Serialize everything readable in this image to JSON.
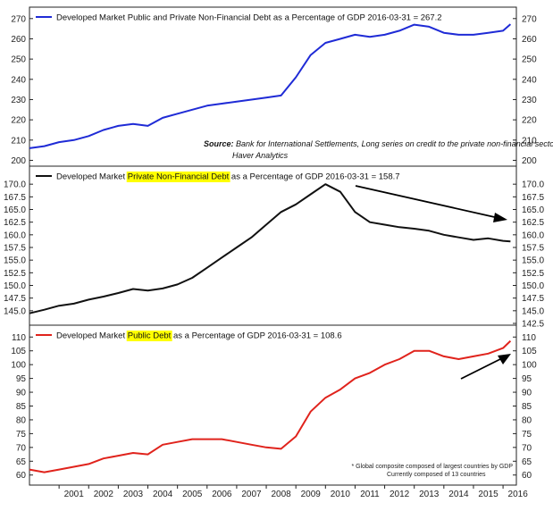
{
  "colors": {
    "blue": "#1f2bd6",
    "black": "#111111",
    "red": "#e0231c",
    "highlight": "#ffff00"
  },
  "x_tick_labels": [
    "2001",
    "2002",
    "2003",
    "2004",
    "2005",
    "2006",
    "2007",
    "2008",
    "2009",
    "2010",
    "2011",
    "2012",
    "2013",
    "2014",
    "2015",
    "2016"
  ],
  "chart_data": [
    {
      "type": "line",
      "title": "Developed Market Public and Private Non-Financial Debt as a Percentage of GDP 2016-03-31 = 267.2",
      "source_label": "Source:",
      "source_text": "Bank for International Settlements, Long series on credit to the private non-financial sector",
      "source_line2": "Haver Analytics",
      "ylim": [
        198,
        273
      ],
      "yticks": [
        200,
        210,
        220,
        230,
        240,
        250,
        260,
        270
      ],
      "tick_labels": [
        "200",
        "210",
        "220",
        "230",
        "240",
        "250",
        "260",
        "270"
      ],
      "color": "blue",
      "x": [
        2000.0,
        2000.5,
        2001.0,
        2001.5,
        2002.0,
        2002.5,
        2003.0,
        2003.5,
        2004.0,
        2004.5,
        2005.0,
        2005.5,
        2006.0,
        2006.5,
        2007.0,
        2007.5,
        2008.0,
        2008.5,
        2009.0,
        2009.5,
        2010.0,
        2010.5,
        2011.0,
        2011.5,
        2012.0,
        2012.5,
        2013.0,
        2013.5,
        2014.0,
        2014.5,
        2015.0,
        2015.5,
        2016.0,
        2016.25
      ],
      "values": [
        206,
        207,
        209,
        210,
        212,
        215,
        217,
        218,
        217,
        221,
        223,
        225,
        227,
        228,
        229,
        230,
        231,
        232,
        241,
        252,
        258,
        260,
        262,
        261,
        262,
        264,
        267,
        266,
        263,
        262,
        262,
        263,
        264,
        267.2
      ]
    },
    {
      "type": "line",
      "title_parts": [
        "Developed Market ",
        "Private Non-Financial Debt",
        " as a Percentage of GDP 2016-03-31 = 158.7"
      ],
      "highlight_index": 1,
      "ylim": [
        142.5,
        172.5
      ],
      "yticks": [
        145.0,
        147.5,
        150.0,
        152.5,
        155.0,
        157.5,
        160.0,
        162.5,
        165.0,
        167.5,
        170.0
      ],
      "tick_labels": [
        "145.0",
        "147.5",
        "150.0",
        "152.5",
        "155.0",
        "157.5",
        "160.0",
        "162.5",
        "165.0",
        "167.5",
        "170.0"
      ],
      "right_tick_labels": [
        "142.5",
        "145.0",
        "147.5",
        "150.0",
        "152.5",
        "155.0",
        "157.5",
        "160.0",
        "162.5",
        "165.0",
        "167.5",
        "170.0"
      ],
      "color": "black",
      "x": [
        2000.0,
        2000.5,
        2001.0,
        2001.5,
        2002.0,
        2002.5,
        2003.0,
        2003.5,
        2004.0,
        2004.5,
        2005.0,
        2005.5,
        2006.0,
        2006.5,
        2007.0,
        2007.5,
        2008.0,
        2008.5,
        2009.0,
        2009.5,
        2010.0,
        2010.5,
        2011.0,
        2011.5,
        2012.0,
        2012.5,
        2013.0,
        2013.5,
        2014.0,
        2014.5,
        2015.0,
        2015.5,
        2016.0,
        2016.25
      ],
      "values": [
        144.5,
        145.2,
        146.0,
        146.4,
        147.2,
        147.8,
        148.5,
        149.3,
        149.0,
        149.4,
        150.2,
        151.5,
        153.5,
        155.5,
        157.5,
        159.5,
        162.0,
        164.5,
        166.0,
        168.0,
        170.0,
        168.5,
        164.5,
        162.5,
        162.0,
        161.5,
        161.2,
        160.8,
        160.0,
        159.5,
        159.0,
        159.3,
        158.8,
        158.7
      ],
      "annotation": "arrow-down"
    },
    {
      "type": "line",
      "title_parts": [
        "Developed Market ",
        "Public Debt",
        " as a Percentage of GDP 2016-03-31 = 108.6"
      ],
      "highlight_index": 1,
      "ylim": [
        57,
        113
      ],
      "yticks": [
        60,
        65,
        70,
        75,
        80,
        85,
        90,
        95,
        100,
        105,
        110
      ],
      "tick_labels": [
        "60",
        "65",
        "70",
        "75",
        "80",
        "85",
        "90",
        "95",
        "100",
        "105",
        "110"
      ],
      "color": "red",
      "x": [
        2000.0,
        2000.5,
        2001.0,
        2001.5,
        2002.0,
        2002.5,
        2003.0,
        2003.5,
        2004.0,
        2004.5,
        2005.0,
        2005.5,
        2006.0,
        2006.5,
        2007.0,
        2007.5,
        2008.0,
        2008.5,
        2009.0,
        2009.5,
        2010.0,
        2010.5,
        2011.0,
        2011.5,
        2012.0,
        2012.5,
        2013.0,
        2013.5,
        2014.0,
        2014.5,
        2015.0,
        2015.5,
        2016.0,
        2016.25
      ],
      "values": [
        62,
        61,
        62,
        63,
        64,
        66,
        67,
        68,
        67.5,
        71,
        72,
        73,
        73,
        73,
        72,
        71,
        70,
        69.5,
        74,
        83,
        88,
        91,
        95,
        97,
        100,
        102,
        105,
        105,
        103,
        102,
        103,
        104,
        106,
        108.6
      ],
      "footnote_line1": "* Global composite composed of largest countries by GDP",
      "footnote_line2": "Currently composed of 13 countries",
      "annotation": "arrow-up"
    }
  ]
}
